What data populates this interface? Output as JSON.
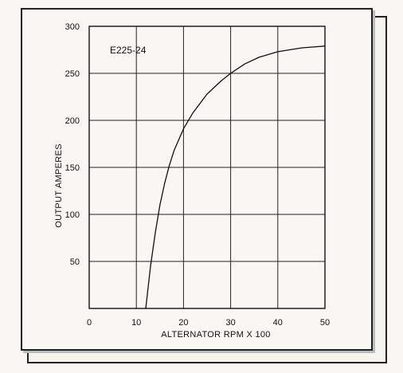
{
  "chart_data": {
    "type": "line",
    "title": "E225-24",
    "xlabel": "ALTERNATOR RPM X 100",
    "ylabel": "OUTPUT AMPERES",
    "xlim": [
      0,
      50
    ],
    "ylim": [
      0,
      300
    ],
    "x_ticks": [
      "0",
      "10",
      "20",
      "30",
      "40",
      "50"
    ],
    "y_ticks": [
      "50",
      "100",
      "150",
      "200",
      "250",
      "300"
    ],
    "grid": true,
    "series": [
      {
        "x": [
          12,
          13,
          14,
          15,
          16,
          17,
          18,
          20,
          22,
          25,
          28,
          30,
          33,
          36,
          40,
          45,
          50
        ],
        "y": [
          0,
          45,
          80,
          110,
          133,
          152,
          168,
          191,
          208,
          228,
          242,
          250,
          260,
          267,
          273,
          277,
          279
        ]
      }
    ]
  }
}
